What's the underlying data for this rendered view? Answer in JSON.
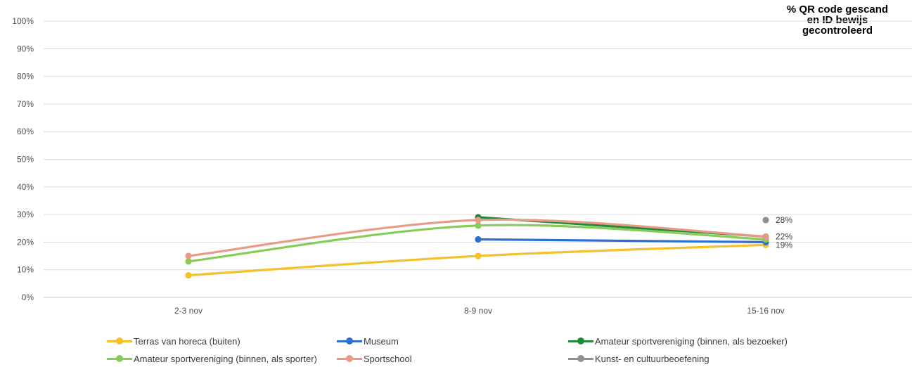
{
  "title_lines": [
    "% QR code gescand",
    "en ID bewijs",
    "gecontroleerd"
  ],
  "chart_data": {
    "type": "line",
    "categories": [
      "2-3 nov",
      "8-9 nov",
      "15-16 nov"
    ],
    "y_ticks": [
      "0%",
      "10%",
      "20%",
      "30%",
      "40%",
      "50%",
      "60%",
      "70%",
      "80%",
      "90%",
      "100%"
    ],
    "ylim": [
      0,
      100
    ],
    "y_unit": "%",
    "grid": true,
    "legend_position": "bottom",
    "series": [
      {
        "name": "Terras van horeca (buiten)",
        "color": "#f5c02a",
        "values": [
          8,
          15,
          19
        ]
      },
      {
        "name": "Museum",
        "color": "#2d6fd1",
        "values": [
          null,
          21,
          20
        ]
      },
      {
        "name": "Amateur sportvereniging (binnen, als bezoeker)",
        "color": "#1f8a3a",
        "values": [
          null,
          29,
          22
        ]
      },
      {
        "name": "Amateur sportvereniging (binnen, als sporter)",
        "color": "#86cc57",
        "values": [
          13,
          26,
          21
        ]
      },
      {
        "name": "Sportschool",
        "color": "#e89a87",
        "values": [
          15,
          28,
          22
        ]
      },
      {
        "name": "Kunst- en cultuurbeoefening",
        "color": "#909090",
        "values": [
          null,
          null,
          28
        ]
      }
    ],
    "data_labels": [
      {
        "text": "28%",
        "x": "15-16 nov",
        "y": 28
      },
      {
        "text": "22%",
        "x": "15-16 nov",
        "y": 22
      },
      {
        "text": "19%",
        "x": "15-16 nov",
        "y": 19
      }
    ]
  }
}
